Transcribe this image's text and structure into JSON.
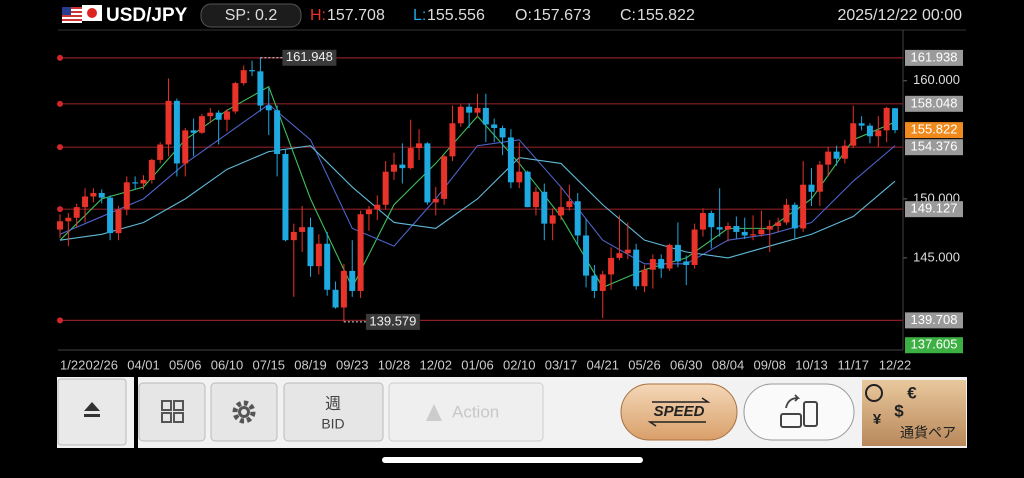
{
  "header": {
    "pair": "USD/JPY",
    "spread": "SP: 0.2",
    "high_label": "H:",
    "high": "157.708",
    "low_label": "L:",
    "low": "155.556",
    "open_label": "O:",
    "open": "157.673",
    "close_label": "C:",
    "close": "155.822",
    "datetime": "2025/12/22 00:00"
  },
  "chart_data": {
    "type": "candlestick",
    "up_color": "#e8332a",
    "down_color": "#1ea9e1",
    "ylim": [
      137.2,
      164.3
    ],
    "yticks": [
      {
        "value": 160,
        "label": "160.000"
      },
      {
        "value": 150,
        "label": "150.000"
      },
      {
        "value": 145,
        "label": "145.000"
      }
    ],
    "x_labels": [
      "1/22",
      "02/26",
      "04/01",
      "05/06",
      "06/10",
      "07/15",
      "08/19",
      "09/23",
      "10/28",
      "12/02",
      "01/06",
      "02/10",
      "03/17",
      "04/21",
      "05/26",
      "06/30",
      "08/04",
      "09/08",
      "10/13",
      "11/17",
      "12/22"
    ],
    "candles": [
      [
        147.4,
        148.7,
        146.7,
        148.1
      ],
      [
        148.1,
        148.8,
        146.0,
        148.4
      ],
      [
        148.4,
        149.6,
        147.6,
        149.3
      ],
      [
        149.3,
        150.9,
        148.0,
        150.2
      ],
      [
        150.2,
        150.9,
        149.7,
        150.5
      ],
      [
        150.5,
        150.8,
        149.6,
        150.1
      ],
      [
        150.1,
        150.3,
        146.5,
        147.1
      ],
      [
        147.1,
        149.4,
        146.5,
        149.1
      ],
      [
        149.1,
        151.9,
        148.6,
        151.4
      ],
      [
        151.4,
        151.9,
        150.8,
        151.3
      ],
      [
        151.3,
        152.0,
        150.8,
        151.6
      ],
      [
        151.6,
        153.4,
        151.3,
        153.3
      ],
      [
        153.3,
        154.8,
        153.0,
        154.6
      ],
      [
        154.6,
        160.2,
        153.6,
        158.3
      ],
      [
        158.3,
        158.5,
        151.9,
        153.0
      ],
      [
        153.0,
        156.0,
        151.9,
        155.8
      ],
      [
        155.8,
        156.8,
        153.6,
        155.6
      ],
      [
        155.6,
        157.2,
        155.5,
        157.0
      ],
      [
        157.0,
        157.7,
        156.4,
        157.3
      ],
      [
        157.3,
        157.5,
        154.6,
        156.7
      ],
      [
        156.7,
        157.6,
        155.7,
        157.4
      ],
      [
        157.4,
        159.9,
        157.2,
        159.8
      ],
      [
        159.8,
        161.3,
        159.6,
        160.9
      ],
      [
        160.9,
        161.7,
        160.4,
        160.8
      ],
      [
        160.8,
        161.948,
        157.4,
        157.9
      ],
      [
        157.9,
        159.4,
        155.4,
        157.5
      ],
      [
        157.5,
        157.9,
        151.9,
        153.8
      ],
      [
        153.8,
        154.2,
        146.4,
        146.5
      ],
      [
        146.5,
        147.9,
        141.7,
        147.2
      ],
      [
        147.2,
        149.4,
        145.5,
        147.6
      ],
      [
        147.6,
        148.4,
        143.4,
        144.3
      ],
      [
        144.3,
        147.0,
        143.6,
        146.2
      ],
      [
        146.2,
        147.2,
        141.8,
        142.3
      ],
      [
        142.3,
        143.0,
        140.7,
        140.8
      ],
      [
        140.8,
        144.5,
        139.579,
        143.9
      ],
      [
        143.9,
        146.5,
        141.7,
        142.2
      ],
      [
        142.2,
        149.0,
        141.6,
        148.7
      ],
      [
        148.7,
        149.4,
        147.3,
        149.1
      ],
      [
        149.1,
        150.3,
        148.2,
        149.5
      ],
      [
        149.5,
        153.2,
        149.1,
        152.3
      ],
      [
        152.3,
        153.9,
        151.6,
        152.9
      ],
      [
        152.9,
        154.7,
        151.3,
        152.6
      ],
      [
        152.6,
        156.7,
        152.5,
        154.3
      ],
      [
        154.3,
        155.9,
        153.3,
        154.7
      ],
      [
        154.7,
        154.8,
        149.5,
        149.7
      ],
      [
        149.7,
        151.0,
        148.6,
        150.0
      ],
      [
        150.0,
        153.7,
        149.5,
        153.6
      ],
      [
        153.6,
        157.9,
        153.2,
        156.4
      ],
      [
        156.4,
        158.0,
        156.1,
        157.8
      ],
      [
        157.8,
        158.1,
        156.0,
        157.3
      ],
      [
        157.3,
        158.9,
        156.9,
        157.7
      ],
      [
        157.7,
        158.9,
        154.8,
        156.3
      ],
      [
        156.3,
        156.8,
        154.8,
        156.0
      ],
      [
        156.0,
        156.2,
        153.7,
        155.2
      ],
      [
        155.2,
        155.9,
        150.9,
        151.4
      ],
      [
        151.4,
        154.8,
        150.9,
        152.3
      ],
      [
        152.3,
        152.4,
        149.3,
        149.3
      ],
      [
        149.3,
        151.0,
        148.6,
        150.6
      ],
      [
        150.6,
        151.3,
        146.5,
        147.9
      ],
      [
        147.9,
        149.2,
        146.5,
        148.6
      ],
      [
        148.6,
        151.0,
        148.2,
        149.3
      ],
      [
        149.3,
        151.2,
        149.0,
        149.8
      ],
      [
        149.8,
        150.5,
        146.1,
        146.9
      ],
      [
        146.9,
        148.3,
        142.5,
        143.5
      ],
      [
        143.5,
        144.4,
        141.6,
        142.2
      ],
      [
        142.2,
        143.9,
        139.9,
        143.6
      ],
      [
        143.6,
        145.9,
        142.3,
        145.0
      ],
      [
        145.0,
        148.6,
        144.8,
        145.4
      ],
      [
        145.4,
        148.0,
        144.9,
        145.7
      ],
      [
        145.7,
        146.2,
        142.3,
        142.6
      ],
      [
        142.6,
        144.4,
        142.1,
        144.0
      ],
      [
        144.0,
        145.3,
        142.4,
        144.9
      ],
      [
        144.9,
        145.3,
        143.3,
        144.1
      ],
      [
        144.1,
        146.2,
        143.9,
        146.1
      ],
      [
        146.1,
        148.0,
        144.2,
        144.7
      ],
      [
        144.7,
        145.2,
        142.7,
        144.4
      ],
      [
        144.4,
        147.9,
        144.1,
        147.4
      ],
      [
        147.4,
        149.2,
        146.8,
        148.8
      ],
      [
        148.8,
        149.0,
        145.8,
        147.6
      ],
      [
        147.6,
        150.9,
        146.8,
        147.4
      ],
      [
        147.4,
        148.0,
        146.4,
        147.7
      ],
      [
        147.7,
        148.5,
        146.6,
        147.2
      ],
      [
        147.2,
        148.4,
        146.6,
        146.9
      ],
      [
        146.9,
        148.6,
        146.5,
        147.0
      ],
      [
        147.0,
        149.0,
        146.8,
        147.4
      ],
      [
        147.4,
        148.2,
        145.5,
        147.7
      ],
      [
        147.7,
        148.4,
        147.2,
        148.0
      ],
      [
        148.0,
        150.0,
        147.8,
        149.5
      ],
      [
        149.5,
        149.7,
        146.6,
        147.5
      ],
      [
        147.5,
        153.2,
        147.2,
        151.2
      ],
      [
        151.2,
        152.6,
        149.4,
        150.6
      ],
      [
        150.6,
        153.2,
        149.4,
        152.9
      ],
      [
        152.9,
        154.4,
        151.9,
        154.0
      ],
      [
        154.0,
        154.5,
        152.8,
        153.4
      ],
      [
        153.4,
        155.0,
        153.0,
        154.5
      ],
      [
        154.5,
        157.9,
        154.3,
        156.4
      ],
      [
        156.4,
        157.0,
        155.8,
        156.2
      ],
      [
        156.2,
        156.4,
        154.7,
        155.3
      ],
      [
        155.3,
        157.0,
        154.4,
        155.8
      ],
      [
        155.8,
        157.8,
        154.8,
        157.7
      ],
      [
        157.673,
        157.708,
        155.556,
        155.822
      ]
    ],
    "moving_averages": [
      {
        "color": "#3fbf5a",
        "values": [
          146.5,
          150.0,
          151.0,
          155.0,
          157.5,
          159.5,
          150.0,
          142.5,
          149.5,
          153.0,
          157.0,
          153.0,
          148.5,
          142.5,
          144.0,
          145.0,
          147.5,
          147.5,
          150.0,
          155.0,
          156.5
        ]
      },
      {
        "color": "#4d63c9",
        "values": [
          147.0,
          148.5,
          150.0,
          153.0,
          155.5,
          158.0,
          155.0,
          147.5,
          146.0,
          150.0,
          154.5,
          155.0,
          151.0,
          146.5,
          144.5,
          144.5,
          146.5,
          147.0,
          148.0,
          151.5,
          154.5
        ]
      },
      {
        "color": "#5fb9d8",
        "values": [
          146.5,
          147.0,
          148.0,
          150.0,
          152.5,
          154.0,
          154.5,
          151.0,
          148.0,
          147.5,
          150.0,
          153.5,
          153.0,
          149.5,
          146.5,
          145.5,
          145.0,
          146.0,
          147.0,
          148.5,
          151.5
        ]
      }
    ],
    "levels": [
      {
        "value": 161.938,
        "label": "161.938"
      },
      {
        "value": 158.048,
        "label": "158.048"
      },
      {
        "value": 154.376,
        "label": "154.376"
      },
      {
        "value": 149.127,
        "label": "149.127"
      },
      {
        "value": 139.708,
        "label": "139.708"
      }
    ],
    "current_price": {
      "value": 155.822,
      "label": "155.822"
    },
    "bottom_price": {
      "value": 137.605,
      "label": "137.605"
    },
    "annotations": [
      {
        "value": 161.948,
        "label": "161.948"
      },
      {
        "value": 139.579,
        "label": "139.579"
      }
    ]
  },
  "toolbar": {
    "week": "週",
    "bid": "BID",
    "action": "Action",
    "speed": "SPEED",
    "currency_pair": "通貨ペア"
  }
}
